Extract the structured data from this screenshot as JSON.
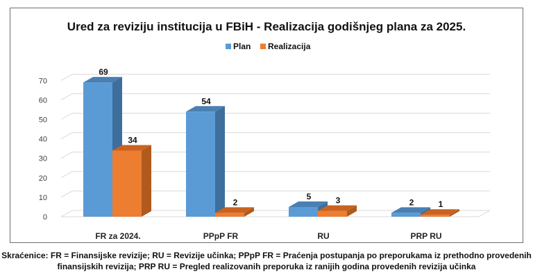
{
  "chart_data": {
    "type": "bar",
    "title": "Ured za reviziju institucija u FBiH - Realizacija godišnjeg plana za 2025.",
    "categories": [
      "FR za 2024.",
      "PPpP FR",
      "RU",
      "PRP RU"
    ],
    "series": [
      {
        "name": "Plan",
        "values": [
          69,
          54,
          5,
          2
        ],
        "color": "#5b9bd5",
        "side_color": "#3e6e9c",
        "top_color": "#4a7fb2"
      },
      {
        "name": "Realizacija",
        "values": [
          34,
          2,
          3,
          1
        ],
        "color": "#ed7d31",
        "side_color": "#b05a1e",
        "top_color": "#c9631f"
      }
    ],
    "ylim": [
      0,
      70
    ],
    "yticks": [
      0,
      10,
      20,
      30,
      40,
      50,
      60,
      70
    ],
    "grid": true,
    "legend": "top",
    "bar_style": "3d"
  },
  "footnote": {
    "line1": "Skraćenice: FR = Finansijske revizije; RU = Revizije učinka; PPpP FR = Praćenja postupanja po preporukama iz prethodno provedenih",
    "line2": "finansijskih revizija; PRP RU = Pregled realizovanih preporuka iz ranijih godina provedenih revizija učinka"
  }
}
